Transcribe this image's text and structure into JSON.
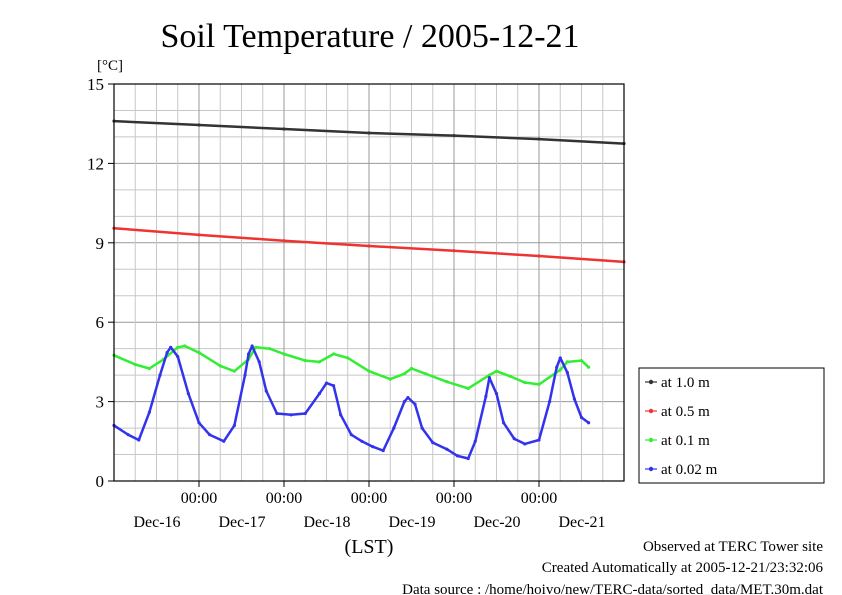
{
  "chart_data": {
    "type": "line",
    "title": "Soil Temperature / 2005-12-21",
    "ylabel": "[°C]",
    "xlabel": "(LST)",
    "ylim": [
      0,
      15
    ],
    "yticks": [
      0,
      3,
      6,
      9,
      12,
      15
    ],
    "xlim": [
      0,
      144
    ],
    "x_unit": "hours since 2005-12-15 00:00 LST",
    "x_ticks": [
      {
        "x": 24,
        "time": "00:00",
        "date": "Dec-16"
      },
      {
        "x": 48,
        "time": "00:00",
        "date": "Dec-17"
      },
      {
        "x": 72,
        "time": "00:00",
        "date": "Dec-18"
      },
      {
        "x": 96,
        "time": "00:00",
        "date": "Dec-19"
      },
      {
        "x": 120,
        "time": "00:00",
        "date": "Dec-20"
      },
      {
        "x": 144,
        "time": "",
        "date": "Dec-21"
      }
    ],
    "grid": true,
    "legend_position": "right",
    "series": [
      {
        "name": "at 1.0 m",
        "color": "#333333",
        "points": [
          [
            0,
            13.6
          ],
          [
            24,
            13.45
          ],
          [
            48,
            13.3
          ],
          [
            72,
            13.15
          ],
          [
            96,
            13.05
          ],
          [
            120,
            12.92
          ],
          [
            144,
            12.75
          ]
        ]
      },
      {
        "name": "at 0.5 m",
        "color": "#ee3333",
        "points": [
          [
            0,
            9.55
          ],
          [
            24,
            9.3
          ],
          [
            48,
            9.08
          ],
          [
            72,
            8.88
          ],
          [
            96,
            8.7
          ],
          [
            120,
            8.5
          ],
          [
            144,
            8.28
          ]
        ]
      },
      {
        "name": "at 0.1 m",
        "color": "#33ee33",
        "points": [
          [
            0,
            4.75
          ],
          [
            6,
            4.4
          ],
          [
            10,
            4.25
          ],
          [
            14,
            4.6
          ],
          [
            18,
            5.05
          ],
          [
            20,
            5.1
          ],
          [
            24,
            4.85
          ],
          [
            30,
            4.35
          ],
          [
            34,
            4.15
          ],
          [
            38,
            4.6
          ],
          [
            40,
            5.05
          ],
          [
            44,
            5.0
          ],
          [
            48,
            4.8
          ],
          [
            54,
            4.55
          ],
          [
            58,
            4.5
          ],
          [
            62,
            4.8
          ],
          [
            66,
            4.65
          ],
          [
            72,
            4.15
          ],
          [
            78,
            3.85
          ],
          [
            82,
            4.05
          ],
          [
            84,
            4.25
          ],
          [
            88,
            4.05
          ],
          [
            94,
            3.75
          ],
          [
            100,
            3.5
          ],
          [
            106,
            4.0
          ],
          [
            108,
            4.15
          ],
          [
            112,
            3.95
          ],
          [
            116,
            3.72
          ],
          [
            120,
            3.65
          ],
          [
            126,
            4.2
          ],
          [
            128,
            4.5
          ],
          [
            132,
            4.55
          ],
          [
            134,
            4.3
          ]
        ]
      },
      {
        "name": "at 0.02 m",
        "color": "#3333ee",
        "points": [
          [
            0,
            2.1
          ],
          [
            4,
            1.75
          ],
          [
            7,
            1.55
          ],
          [
            10,
            2.6
          ],
          [
            13,
            4.0
          ],
          [
            15,
            4.85
          ],
          [
            16,
            5.05
          ],
          [
            18,
            4.7
          ],
          [
            21,
            3.3
          ],
          [
            24,
            2.2
          ],
          [
            27,
            1.75
          ],
          [
            31,
            1.5
          ],
          [
            34,
            2.1
          ],
          [
            37,
            4.0
          ],
          [
            38,
            4.8
          ],
          [
            39,
            5.1
          ],
          [
            41,
            4.5
          ],
          [
            43,
            3.4
          ],
          [
            46,
            2.55
          ],
          [
            50,
            2.5
          ],
          [
            54,
            2.55
          ],
          [
            58,
            3.3
          ],
          [
            60,
            3.7
          ],
          [
            62,
            3.6
          ],
          [
            64,
            2.5
          ],
          [
            67,
            1.75
          ],
          [
            70,
            1.5
          ],
          [
            73,
            1.3
          ],
          [
            76,
            1.15
          ],
          [
            79,
            2.0
          ],
          [
            82,
            3.0
          ],
          [
            83,
            3.15
          ],
          [
            85,
            2.9
          ],
          [
            87,
            2.0
          ],
          [
            90,
            1.45
          ],
          [
            94,
            1.2
          ],
          [
            97,
            0.95
          ],
          [
            100,
            0.85
          ],
          [
            102,
            1.5
          ],
          [
            105,
            3.2
          ],
          [
            106,
            3.9
          ],
          [
            108,
            3.3
          ],
          [
            110,
            2.2
          ],
          [
            113,
            1.6
          ],
          [
            116,
            1.4
          ],
          [
            120,
            1.55
          ],
          [
            123,
            3.0
          ],
          [
            125,
            4.3
          ],
          [
            126,
            4.65
          ],
          [
            128,
            4.1
          ],
          [
            130,
            3.1
          ],
          [
            132,
            2.4
          ],
          [
            134,
            2.2
          ]
        ]
      }
    ]
  },
  "footer": {
    "line1": "Observed at TERC Tower site",
    "line2": "Created Automatically at 2005-12-21/23:32:06",
    "line3": "Data source : /home/hoivo/new/TERC-data/sorted_data/MET.30m.dat"
  }
}
